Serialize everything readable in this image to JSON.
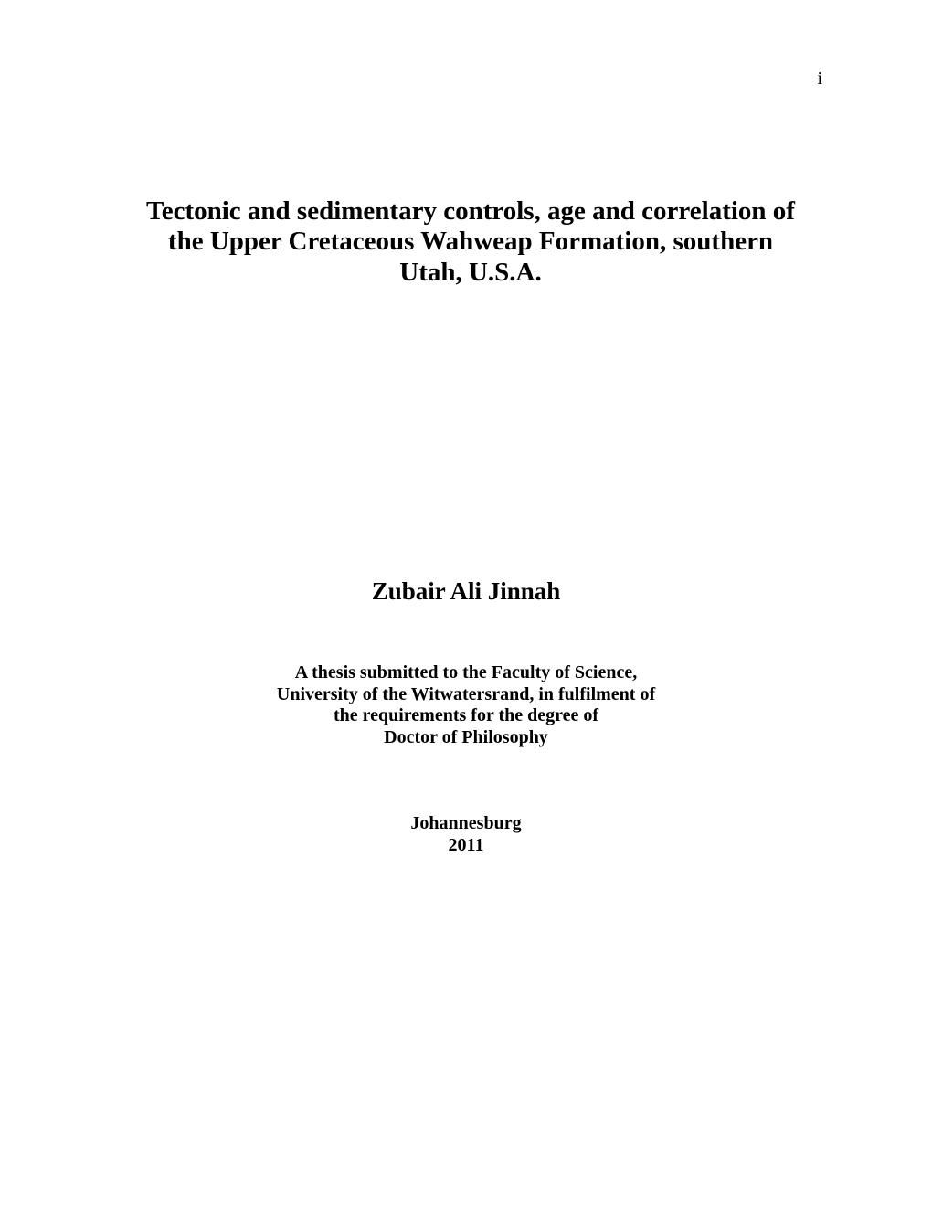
{
  "page_number": "i",
  "title_line1": "Tectonic and sedimentary controls, age and correlation of",
  "title_line2": "the Upper Cretaceous Wahweap Formation, southern",
  "title_line3": "Utah, U.S.A.",
  "author": "Zubair Ali Jinnah",
  "thesis_line1": "A thesis submitted to the Faculty of Science,",
  "thesis_line2": "University of the Witwatersrand, in fulfilment of",
  "thesis_line3": "the requirements for the degree of",
  "thesis_line4": "Doctor of Philosophy",
  "location": "Johannesburg",
  "year": "2011"
}
